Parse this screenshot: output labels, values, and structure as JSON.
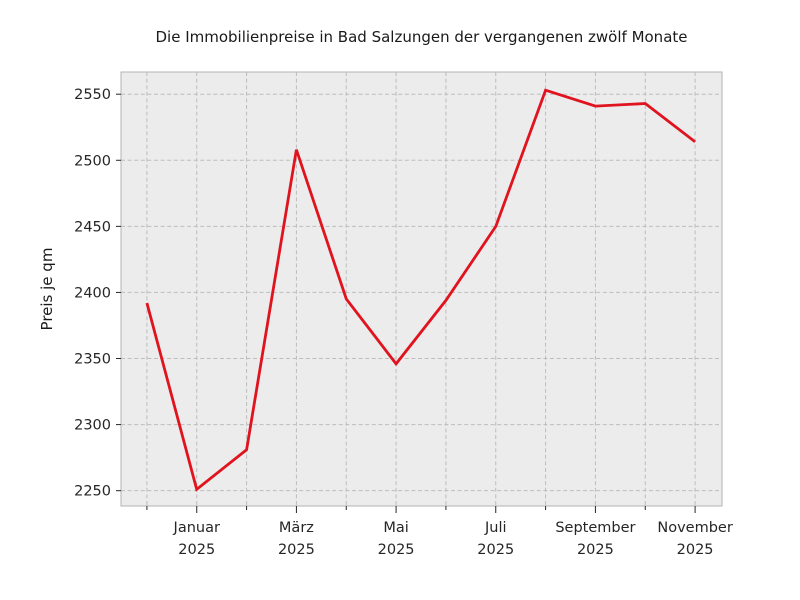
{
  "chart_data": {
    "type": "line",
    "title": "Die Immobilienpreise in Bad Salzungen der vergangenen zwölf Monate",
    "ylabel": "Preis je qm",
    "xlabel": "",
    "x": [
      0,
      1,
      2,
      3,
      4,
      5,
      6,
      7,
      8,
      9,
      10,
      11
    ],
    "values": [
      2392,
      2251,
      2281,
      2508,
      2395,
      2346,
      2394,
      2450,
      2553,
      2541,
      2543,
      2514
    ],
    "x_tick_positions": [
      1,
      3,
      5,
      7,
      9,
      11
    ],
    "x_tick_labels": [
      [
        "Januar",
        "2025"
      ],
      [
        "März",
        "2025"
      ],
      [
        "Mai",
        "2025"
      ],
      [
        "Juli",
        "2025"
      ],
      [
        "September",
        "2025"
      ],
      [
        "November",
        "2025"
      ]
    ],
    "y_ticks": [
      2250,
      2300,
      2350,
      2400,
      2450,
      2500,
      2550
    ],
    "ylim": [
      2238.4,
      2566.8
    ],
    "xlim": [
      -0.52,
      11.54
    ],
    "grid": true,
    "grid_style": "dashed",
    "legend": "none",
    "line_color": "#e0131e",
    "plot_bg": "#ececec",
    "grid_color": "#bdbdbd",
    "spine_color": "#b3b3b3",
    "tick_color": "#262626"
  }
}
